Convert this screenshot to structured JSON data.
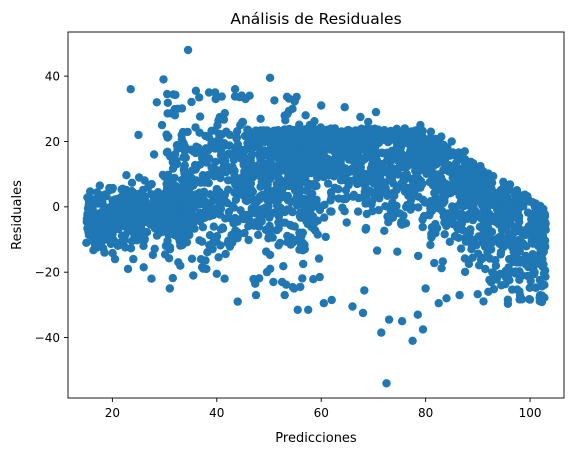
{
  "chart_data": {
    "type": "scatter",
    "title": "Análisis de Residuales",
    "xlabel": "Predicciones",
    "ylabel": "Residuales",
    "xlim": [
      11.5,
      106.5
    ],
    "ylim": [
      -58.5,
      53.5
    ],
    "xticks": [
      {
        "value": 20,
        "label": "20"
      },
      {
        "value": 40,
        "label": "40"
      },
      {
        "value": 60,
        "label": "60"
      },
      {
        "value": 80,
        "label": "80"
      },
      {
        "value": 100,
        "label": "100"
      }
    ],
    "yticks": [
      {
        "value": -40,
        "label": "−40"
      },
      {
        "value": -20,
        "label": "−20"
      },
      {
        "value": 0,
        "label": "0"
      },
      {
        "value": 20,
        "label": "20"
      },
      {
        "value": 40,
        "label": "40"
      }
    ],
    "grid": false,
    "marker_color": "#1f77b4",
    "series": [
      {
        "x": [
          34.5,
          23.5,
          50.2,
          29.8,
          72.5,
          77.5,
          71.5,
          79.5,
          75.5,
          78.5,
          73.0,
          68.0,
          57.5,
          66.0,
          60.5,
          62.0,
          55.5,
          53.0,
          54.8,
          56.0,
          52.5,
          47.5,
          44.0,
          41.5,
          40.0,
          38.0,
          35.5,
          33.0,
          31.0,
          27.5,
          26.0,
          24.0,
          23.0,
          20.5,
          18.5,
          17.0,
          15.0,
          16.5,
          18.0,
          25.0,
          28.5,
          30.5,
          32.5,
          28.0,
          32.0,
          29.5,
          36.0,
          38.5,
          45.5,
          43.5,
          54.5,
          57.0,
          60.0,
          64.5,
          67.5,
          69.0,
          70.5,
          86.0,
          88.0,
          90.5,
          93.5,
          96.0,
          98.5,
          97.5,
          100.5,
          102.5,
          101.0,
          92.0,
          94.5,
          86.5,
          84.0,
          82.5,
          80.0,
          79.0,
          76.0,
          74.0,
          70.0,
          66.5,
          63.0,
          59.0,
          58.0,
          85.0,
          87.5,
          83.0,
          81.0,
          44.5,
          42.5,
          40.5,
          36.5,
          37.5,
          39.0,
          46.5,
          48.0,
          49.0,
          51.5,
          55.0,
          65.0,
          68.5,
          71.0,
          73.5
        ],
        "y": [
          48.0,
          36.0,
          39.5,
          39.0,
          -54.0,
          -41.0,
          -38.5,
          -37.5,
          -35.0,
          -33.0,
          -34.5,
          -32.5,
          -31.5,
          -30.5,
          -29.5,
          -28.5,
          -31.5,
          -27.0,
          -25.0,
          -24.5,
          -23.0,
          -27.0,
          -29.0,
          -22.0,
          -20.5,
          -19.0,
          -21.0,
          -18.0,
          -25.0,
          -22.0,
          -18.5,
          -16.0,
          -19.0,
          -16.0,
          -14.0,
          -12.5,
          -11.0,
          -3.0,
          -5.0,
          22.0,
          32.0,
          34.5,
          30.0,
          16.0,
          28.0,
          25.0,
          35.5,
          35.0,
          33.0,
          36.0,
          30.0,
          28.0,
          31.0,
          30.5,
          27.5,
          26.0,
          29.0,
          10.0,
          5.0,
          -2.0,
          -10.0,
          -16.0,
          -21.0,
          -17.0,
          -14.5,
          -3.0,
          -8.0,
          -26.0,
          -24.0,
          -27.0,
          -28.0,
          -29.5,
          -25.0,
          25.0,
          24.0,
          22.0,
          20.0,
          18.0,
          16.5,
          15.0,
          12.0,
          20.0,
          17.0,
          21.5,
          23.0,
          25.0,
          22.0,
          20.0,
          18.0,
          15.0,
          12.0,
          14.0,
          11.0,
          9.0,
          7.0,
          5.0,
          3.0,
          1.0,
          -1.0,
          -3.0
        ]
      }
    ]
  }
}
